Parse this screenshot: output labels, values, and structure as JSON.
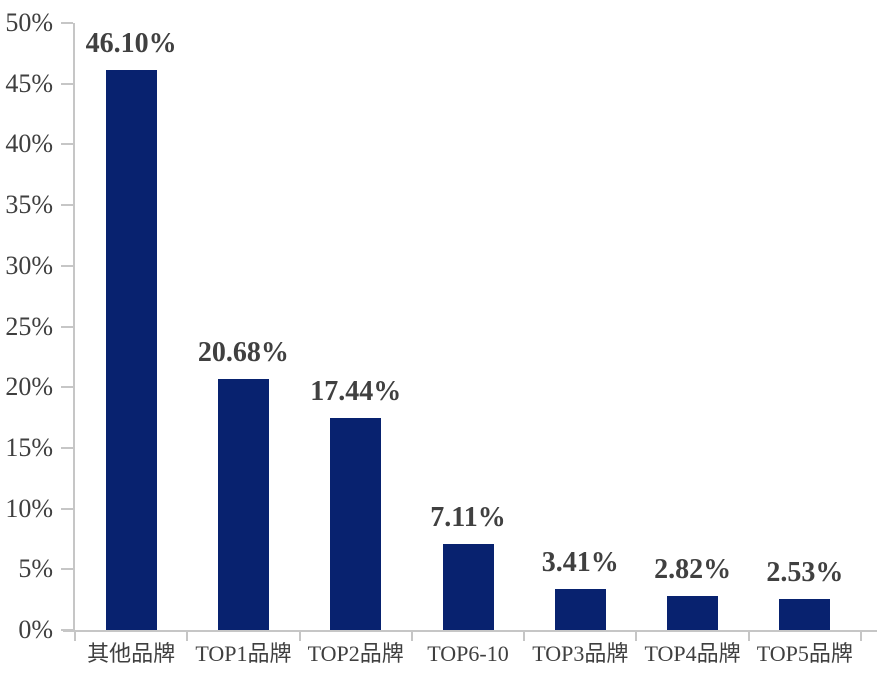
{
  "chart_data": {
    "type": "bar",
    "title": "",
    "xlabel": "",
    "ylabel": "",
    "categories": [
      "其他品牌",
      "TOP1品牌",
      "TOP2品牌",
      "TOP6-10",
      "TOP3品牌",
      "TOP4品牌",
      "TOP5品牌"
    ],
    "values": [
      46.1,
      20.68,
      17.44,
      7.11,
      3.41,
      2.82,
      2.53
    ],
    "value_labels": [
      "46.10%",
      "20.68%",
      "17.44%",
      "7.11%",
      "3.41%",
      "2.82%",
      "2.53%"
    ],
    "y_tick_labels": [
      "0%",
      "5%",
      "10%",
      "15%",
      "20%",
      "25%",
      "30%",
      "35%",
      "40%",
      "45%",
      "50%"
    ],
    "ylim": [
      0,
      50
    ],
    "y_step": 5,
    "grid": false,
    "legend": "none",
    "colors": {
      "bar": "#08226f",
      "axis": "#c6c6c6",
      "value_label": "#404040",
      "tick_label": "#3f3f3f"
    }
  }
}
